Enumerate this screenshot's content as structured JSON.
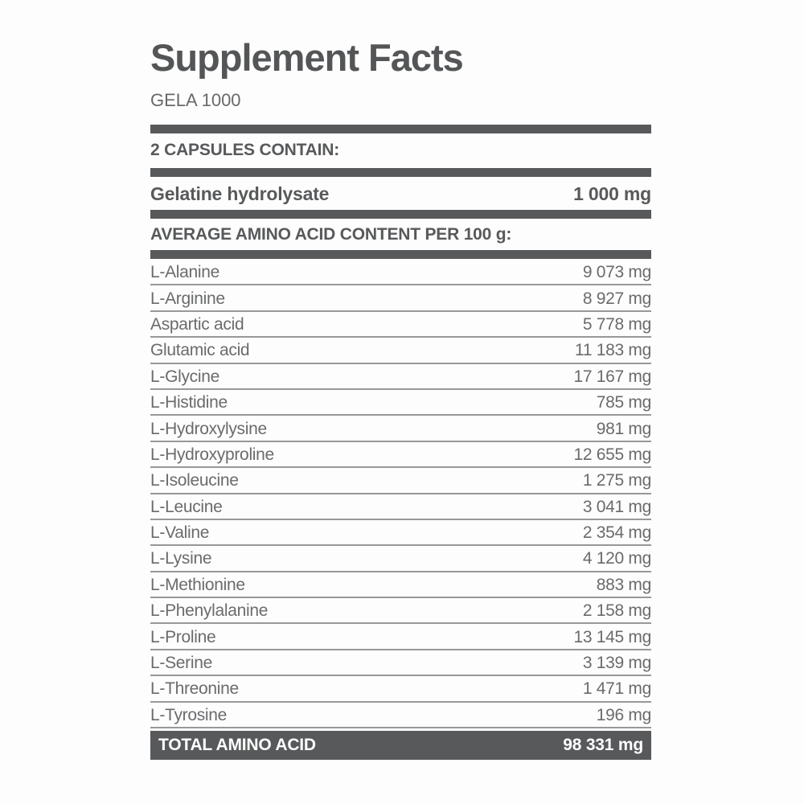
{
  "label": {
    "title": "Supplement Facts",
    "product_name": "GELA 1000",
    "serving_heading": "2 CAPSULES CONTAIN:",
    "ingredient": {
      "name": "Gelatine hydrolysate",
      "amount": "1 000 mg"
    },
    "amino_heading": "AVERAGE AMINO ACID CONTENT PER 100 g:",
    "table": {
      "rows": [
        {
          "label": "L-Alanine",
          "value": "9 073 mg"
        },
        {
          "label": "L-Arginine",
          "value": "8 927 mg"
        },
        {
          "label": "Aspartic acid",
          "value": "5 778 mg"
        },
        {
          "label": "Glutamic acid",
          "value": "11 183 mg"
        },
        {
          "label": "L-Glycine",
          "value": "17 167 mg"
        },
        {
          "label": "L-Histidine",
          "value": "785 mg"
        },
        {
          "label": "L-Hydroxylysine",
          "value": "981 mg"
        },
        {
          "label": "L-Hydroxyproline",
          "value": "12 655 mg"
        },
        {
          "label": "L-Isoleucine",
          "value": "1 275 mg"
        },
        {
          "label": "L-Leucine",
          "value": "3 041 mg"
        },
        {
          "label": "L-Valine",
          "value": "2 354 mg"
        },
        {
          "label": "L-Lysine",
          "value": "4 120 mg"
        },
        {
          "label": "L-Methionine",
          "value": "883 mg"
        },
        {
          "label": "L-Phenylalanine",
          "value": "2 158 mg"
        },
        {
          "label": "L-Proline",
          "value": "13 145 mg"
        },
        {
          "label": "L-Serine",
          "value": "3 139 mg"
        },
        {
          "label": "L-Threonine",
          "value": "1 471 mg"
        },
        {
          "label": "L-Tyrosine",
          "value": "196 mg"
        }
      ],
      "total": {
        "label": "TOTAL AMINO ACID",
        "value": "98 331 mg"
      }
    },
    "colors": {
      "dark_gray": "#58595b",
      "title_gray": "#545557",
      "row_text_gray": "#6a6b6d",
      "separator_gray": "#97989a",
      "total_text": "#ffffff",
      "background": "#fdfdfd"
    }
  }
}
